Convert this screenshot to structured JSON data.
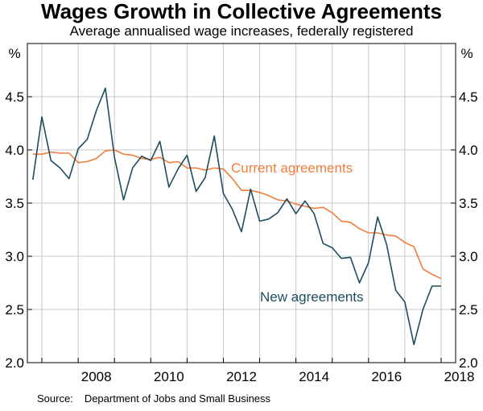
{
  "title": "Wages Growth in Collective Agreements",
  "subtitle": "Average annualised wage increases, federally registered",
  "source_label": "Source:",
  "source_text": "Department of Jobs and Small Business",
  "colors": {
    "current": "#f07e3b",
    "new": "#1e4d5f",
    "grid": "#c8c8c8",
    "axis": "#000000"
  },
  "chart_data": {
    "type": "line",
    "title": "Wages Growth in Collective Agreements",
    "subtitle": "Average annualised wage increases, federally registered",
    "ylabel_left": "%",
    "ylabel_right": "%",
    "ylim": [
      2.0,
      5.0
    ],
    "yticks": [
      2.0,
      2.5,
      3.0,
      3.5,
      4.0,
      4.5
    ],
    "ytick_labels": [
      "2.0",
      "2.5",
      "3.0",
      "3.5",
      "4.0",
      "4.5"
    ],
    "xlim": [
      2006.6,
      2018.4
    ],
    "xticks": [
      2008,
      2010,
      2012,
      2014,
      2016,
      2018
    ],
    "xtick_labels": [
      "2008",
      "2010",
      "2012",
      "2014",
      "2016",
      "2018"
    ],
    "grid": true,
    "series": [
      {
        "name": "Current agreements",
        "color": "#f07e3b",
        "x": [
          2006.75,
          2007.0,
          2007.25,
          2007.5,
          2007.75,
          2008.0,
          2008.25,
          2008.5,
          2008.75,
          2009.0,
          2009.25,
          2009.5,
          2009.75,
          2010.0,
          2010.25,
          2010.5,
          2010.75,
          2011.0,
          2011.25,
          2011.5,
          2011.75,
          2012.0,
          2012.25,
          2012.5,
          2012.75,
          2013.0,
          2013.25,
          2013.5,
          2013.75,
          2014.0,
          2014.25,
          2014.5,
          2014.75,
          2015.0,
          2015.25,
          2015.5,
          2015.75,
          2016.0,
          2016.25,
          2016.5,
          2016.75,
          2017.0,
          2017.25,
          2017.5,
          2017.75,
          2018.0
        ],
        "values": [
          3.96,
          3.96,
          3.98,
          3.97,
          3.97,
          3.88,
          3.89,
          3.92,
          3.99,
          4.0,
          3.96,
          3.95,
          3.92,
          3.91,
          3.93,
          3.88,
          3.89,
          3.83,
          3.83,
          3.81,
          3.83,
          3.82,
          3.73,
          3.62,
          3.62,
          3.6,
          3.57,
          3.53,
          3.52,
          3.49,
          3.47,
          3.45,
          3.46,
          3.41,
          3.33,
          3.32,
          3.26,
          3.22,
          3.22,
          3.2,
          3.19,
          3.13,
          3.09,
          2.88,
          2.83,
          2.79
        ]
      },
      {
        "name": "New agreements",
        "color": "#1e4d5f",
        "x": [
          2006.75,
          2007.0,
          2007.25,
          2007.5,
          2007.75,
          2008.0,
          2008.25,
          2008.5,
          2008.75,
          2009.0,
          2009.25,
          2009.5,
          2009.75,
          2010.0,
          2010.25,
          2010.5,
          2010.75,
          2011.0,
          2011.25,
          2011.5,
          2011.75,
          2012.0,
          2012.25,
          2012.5,
          2012.75,
          2013.0,
          2013.25,
          2013.5,
          2013.75,
          2014.0,
          2014.25,
          2014.5,
          2014.75,
          2015.0,
          2015.25,
          2015.5,
          2015.75,
          2016.0,
          2016.25,
          2016.5,
          2016.75,
          2017.0,
          2017.25,
          2017.5,
          2017.75,
          2018.0
        ],
        "values": [
          3.72,
          4.31,
          3.9,
          3.83,
          3.73,
          4.01,
          4.1,
          4.37,
          4.58,
          3.93,
          3.53,
          3.83,
          3.94,
          3.9,
          4.08,
          3.65,
          3.82,
          3.95,
          3.61,
          3.74,
          4.13,
          3.59,
          3.44,
          3.23,
          3.63,
          3.33,
          3.35,
          3.41,
          3.54,
          3.4,
          3.52,
          3.4,
          3.12,
          3.08,
          2.98,
          2.99,
          2.75,
          2.94,
          3.37,
          3.11,
          2.68,
          2.57,
          2.17,
          2.5,
          2.72,
          2.72
        ]
      }
    ],
    "annotations": [
      "Current agreements",
      "New agreements"
    ]
  }
}
